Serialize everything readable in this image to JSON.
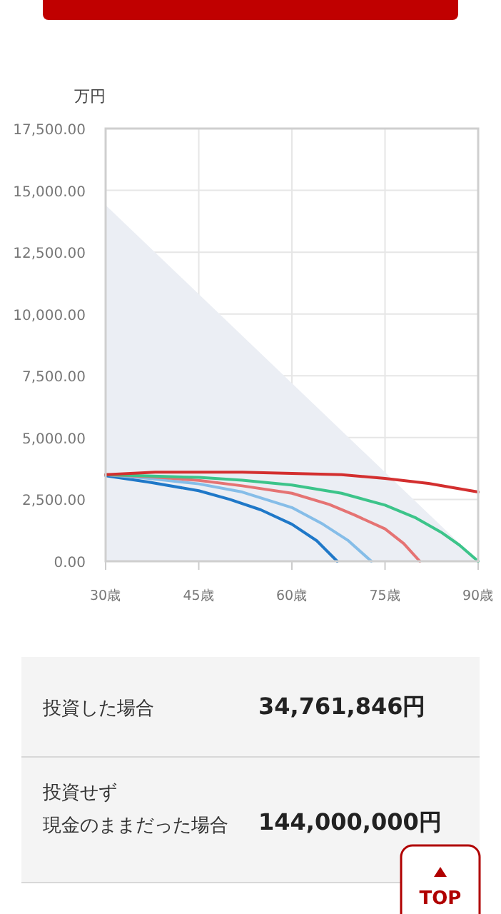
{
  "chart_data": [
    {
      "type": "line",
      "ylabel": "万円",
      "xlim": [
        30,
        90
      ],
      "ylim": [
        0,
        17500
      ],
      "xticks": [
        {
          "value": 30,
          "label": "30歳"
        },
        {
          "value": 45,
          "label": "45歳"
        },
        {
          "value": 60,
          "label": "60歳"
        },
        {
          "value": 75,
          "label": "75歳"
        },
        {
          "value": 90,
          "label": "90歳"
        }
      ],
      "yticks": [
        {
          "value": 0,
          "label": "0.00"
        },
        {
          "value": 2500,
          "label": "2,500.00"
        },
        {
          "value": 5000,
          "label": "5,000.00"
        },
        {
          "value": 7500,
          "label": "7,500.00"
        },
        {
          "value": 10000,
          "label": "10,000.00"
        },
        {
          "value": 12500,
          "label": "12,500.00"
        },
        {
          "value": 15000,
          "label": "15,000.00"
        },
        {
          "value": 17500,
          "label": "17,500.00"
        }
      ],
      "grid": true,
      "series": [
        {
          "type": "area",
          "color": "#ebeef4",
          "x": [
            30,
            90
          ],
          "values": [
            14400,
            0
          ]
        },
        {
          "color": "#1f78c8",
          "x": [
            30,
            37,
            45,
            50,
            55,
            60,
            64,
            67.3
          ],
          "values": [
            3460,
            3200,
            2850,
            2500,
            2080,
            1500,
            830,
            0
          ]
        },
        {
          "color": "#85bde8",
          "x": [
            30,
            37,
            45,
            52,
            60,
            65,
            69,
            72.8
          ],
          "values": [
            3500,
            3350,
            3130,
            2800,
            2170,
            1500,
            850,
            0
          ]
        },
        {
          "color": "#e57373",
          "x": [
            30,
            37,
            45,
            52,
            60,
            66,
            70,
            75,
            78,
            80.6
          ],
          "values": [
            3500,
            3420,
            3270,
            3050,
            2750,
            2300,
            1880,
            1310,
            720,
            0
          ]
        },
        {
          "color": "#3cc48a",
          "x": [
            30,
            45,
            52,
            60,
            68,
            75,
            80,
            84,
            87,
            90
          ],
          "values": [
            3500,
            3390,
            3280,
            3080,
            2750,
            2270,
            1750,
            1180,
            650,
            0
          ]
        },
        {
          "color": "#d32f2f",
          "x": [
            30,
            38,
            45,
            52,
            60,
            68,
            75,
            82,
            90
          ],
          "values": [
            3500,
            3600,
            3600,
            3600,
            3550,
            3500,
            3350,
            3150,
            2800
          ]
        }
      ]
    },
    {
      "type": "other",
      "annotations": [
        "投資した場合",
        "34,761,846円",
        "投資せず",
        "現金のままだった場合",
        "144,000,000円",
        "TOP"
      ]
    }
  ]
}
